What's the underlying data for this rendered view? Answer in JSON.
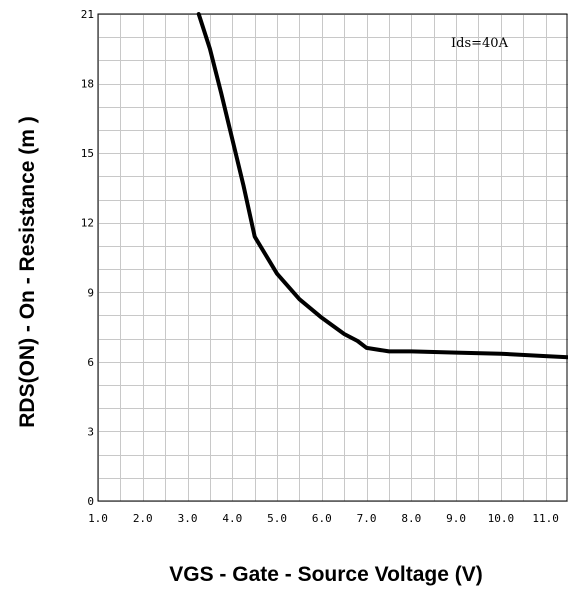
{
  "chart_data": {
    "type": "line",
    "title": "",
    "xlabel": "VGS - Gate - Source Voltage (V)",
    "ylabel": "RDS(ON) - On - Resistance (m   )",
    "annotation": "Ids=40A",
    "xlim": [
      1.0,
      11.5
    ],
    "ylim": [
      0,
      21
    ],
    "x_ticks": [
      "1.0",
      "2.0",
      "3.0",
      "4.0",
      "5.0",
      "6.0",
      "7.0",
      "8.0",
      "9.0",
      "10.0",
      "11.0"
    ],
    "y_ticks": [
      "0",
      "3",
      "6",
      "9",
      "12",
      "15",
      "18",
      "21"
    ],
    "grid": true,
    "series": [
      {
        "x": [
          3.25,
          3.5,
          3.75,
          4.0,
          4.25,
          4.5,
          5.0,
          5.5,
          6.0,
          6.5,
          6.8,
          7.0,
          7.5,
          8.0,
          9.0,
          10.0,
          11.0,
          11.5
        ],
        "y": [
          21.0,
          19.5,
          17.6,
          15.6,
          13.6,
          11.4,
          9.8,
          8.7,
          7.9,
          7.2,
          6.9,
          6.6,
          6.45,
          6.45,
          6.4,
          6.35,
          6.25,
          6.2
        ],
        "color": "#000000"
      }
    ]
  }
}
